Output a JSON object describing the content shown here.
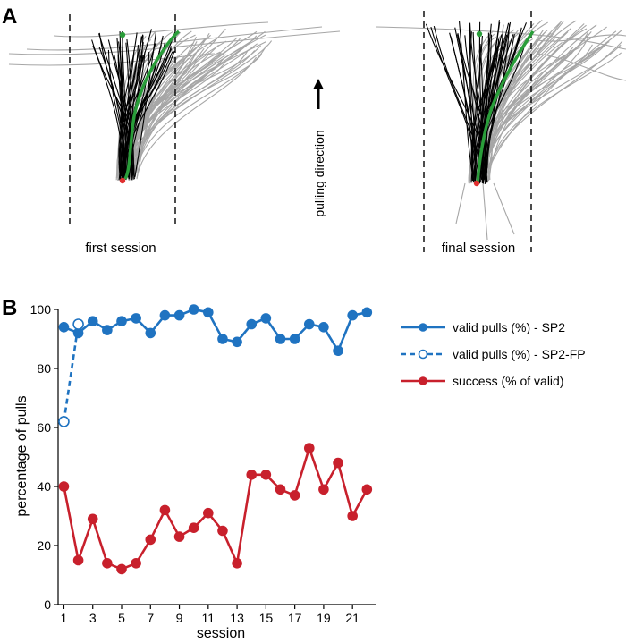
{
  "panel_a": {
    "label": "A",
    "direction_label": "pulling direction",
    "sessions": [
      {
        "label": "first session"
      },
      {
        "label": "final session"
      }
    ]
  },
  "panel_b": {
    "label": "B"
  },
  "colors": {
    "blue": "#1f73c1",
    "red": "#c8202c",
    "green": "#2a9d3a",
    "gray": "#a6a6a6",
    "black": "#000000"
  },
  "chart_data": {
    "type": "line",
    "xlabel": "session",
    "ylabel": "percentage of pulls",
    "xlim": [
      0.6,
      22.6
    ],
    "ylim": [
      0,
      100
    ],
    "x_ticks": [
      1,
      3,
      5,
      7,
      9,
      11,
      13,
      15,
      17,
      19,
      21
    ],
    "y_ticks": [
      0,
      20,
      40,
      60,
      80,
      100
    ],
    "grid": false,
    "legend_position": "right",
    "series": [
      {
        "name": "valid pulls (%) - SP2",
        "color": "#1f73c1",
        "style": "solid",
        "marker": "filled-circle",
        "x": [
          1,
          2,
          3,
          4,
          5,
          6,
          7,
          8,
          9,
          10,
          11,
          12,
          13,
          14,
          15,
          16,
          17,
          18,
          19,
          20,
          21,
          22
        ],
        "values": [
          94,
          92,
          96,
          93,
          96,
          97,
          92,
          98,
          98,
          100,
          99,
          90,
          89,
          95,
          97,
          90,
          90,
          95,
          94,
          86,
          98,
          99
        ]
      },
      {
        "name": "valid pulls (%) - SP2-FP",
        "color": "#1f73c1",
        "style": "dashed",
        "marker": "open-circle",
        "x": [
          1,
          2
        ],
        "values": [
          62,
          95
        ]
      },
      {
        "name": "success (% of valid)",
        "color": "#c8202c",
        "style": "solid",
        "marker": "filled-circle",
        "x": [
          1,
          2,
          3,
          4,
          5,
          6,
          7,
          8,
          9,
          10,
          11,
          12,
          13,
          14,
          15,
          16,
          17,
          18,
          19,
          20,
          21,
          22
        ],
        "values": [
          40,
          15,
          29,
          14,
          12,
          14,
          22,
          32,
          23,
          26,
          31,
          25,
          14,
          44,
          44,
          39,
          37,
          53,
          39,
          48,
          30,
          39
        ]
      }
    ]
  }
}
